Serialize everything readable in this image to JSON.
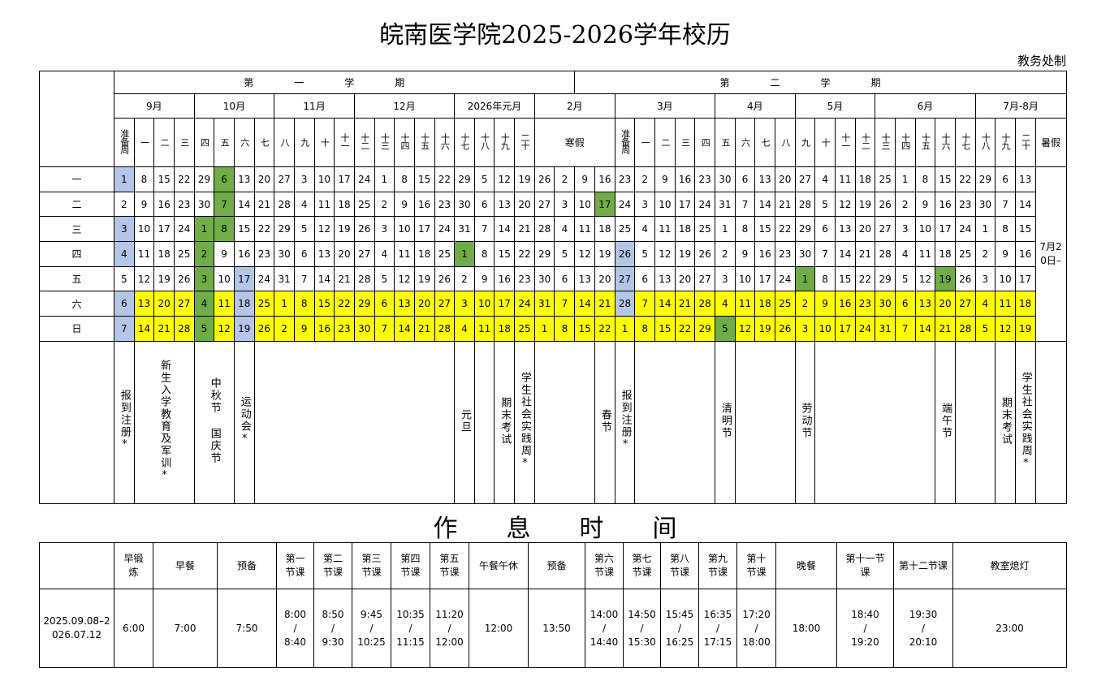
{
  "header": {
    "title": "皖南医学院2025-2026学年校历",
    "issuer": "教务处制"
  },
  "calendar": {
    "semesters": [
      "第一学期",
      "第二学期"
    ],
    "months": [
      "9月",
      "10月",
      "11月",
      "12月",
      "2026年元月",
      "2月",
      "3月",
      "4月",
      "5月",
      "6月",
      "7月-8月"
    ],
    "weeks": [
      "准备周",
      "一",
      "二",
      "三",
      "四",
      "五",
      "六",
      "七",
      "八",
      "九",
      "十",
      "十一",
      "十二",
      "十三",
      "十四",
      "十五",
      "十六",
      "十七",
      "十八",
      "十九",
      "二十",
      "寒假",
      "准备周",
      "一",
      "二",
      "三",
      "四",
      "五",
      "六",
      "七",
      "八",
      "九",
      "十",
      "十一",
      "十二",
      "十三",
      "十四",
      "十五",
      "十六",
      "十七",
      "十八",
      "十九",
      "二十",
      "暑假"
    ],
    "weekdays": [
      "一",
      "二",
      "三",
      "四",
      "五",
      "六",
      "日"
    ],
    "rows": [
      [
        1,
        8,
        15,
        22,
        29,
        6,
        13,
        20,
        27,
        3,
        10,
        17,
        24,
        1,
        8,
        15,
        22,
        29,
        5,
        12,
        19,
        26,
        2,
        9,
        16,
        23,
        2,
        9,
        16,
        23,
        30,
        6,
        13,
        20,
        27,
        4,
        11,
        18,
        25,
        1,
        8,
        15,
        22,
        29,
        6,
        13
      ],
      [
        2,
        9,
        16,
        23,
        30,
        7,
        14,
        21,
        28,
        4,
        11,
        18,
        25,
        2,
        9,
        16,
        23,
        30,
        6,
        13,
        20,
        27,
        3,
        10,
        17,
        24,
        3,
        10,
        17,
        24,
        31,
        7,
        14,
        21,
        28,
        5,
        12,
        19,
        26,
        2,
        9,
        16,
        23,
        30,
        7,
        14
      ],
      [
        3,
        10,
        17,
        24,
        1,
        8,
        15,
        22,
        29,
        5,
        12,
        19,
        26,
        3,
        10,
        17,
        24,
        31,
        7,
        14,
        21,
        28,
        4,
        11,
        18,
        25,
        4,
        11,
        18,
        25,
        1,
        8,
        15,
        22,
        29,
        6,
        13,
        20,
        27,
        3,
        10,
        17,
        24,
        1,
        8,
        15
      ],
      [
        4,
        11,
        18,
        25,
        2,
        9,
        16,
        23,
        30,
        6,
        13,
        20,
        27,
        4,
        11,
        18,
        25,
        1,
        8,
        15,
        22,
        29,
        5,
        12,
        19,
        26,
        5,
        12,
        19,
        26,
        2,
        9,
        16,
        23,
        30,
        7,
        14,
        21,
        28,
        4,
        11,
        18,
        25,
        2,
        9,
        16
      ],
      [
        5,
        12,
        19,
        26,
        3,
        10,
        17,
        24,
        31,
        7,
        14,
        21,
        28,
        5,
        12,
        19,
        26,
        2,
        9,
        16,
        23,
        30,
        6,
        13,
        20,
        27,
        6,
        13,
        20,
        27,
        3,
        10,
        17,
        24,
        1,
        8,
        15,
        22,
        29,
        5,
        12,
        19,
        26,
        3,
        10,
        17
      ],
      [
        6,
        13,
        20,
        27,
        4,
        11,
        18,
        25,
        1,
        8,
        15,
        22,
        29,
        6,
        13,
        20,
        27,
        3,
        10,
        17,
        24,
        31,
        7,
        14,
        21,
        28,
        7,
        14,
        21,
        28,
        4,
        11,
        18,
        25,
        2,
        9,
        16,
        23,
        30,
        6,
        13,
        20,
        27,
        4,
        11,
        18
      ],
      [
        7,
        14,
        21,
        28,
        5,
        12,
        19,
        26,
        2,
        9,
        16,
        23,
        30,
        7,
        14,
        21,
        28,
        4,
        11,
        18,
        25,
        1,
        8,
        15,
        22,
        1,
        8,
        15,
        22,
        29,
        5,
        12,
        19,
        26,
        3,
        10,
        17,
        24,
        31,
        7,
        14,
        21,
        28,
        5,
        12,
        19
      ]
    ],
    "summer_note": "7月20日–",
    "events": [
      "报到注册*",
      "新生入学教育及军训*",
      "中秋节 国庆节",
      "运动会*",
      "元旦",
      "期末考试",
      "学生社会实践周*",
      "春节",
      "报到注册*",
      "清明节",
      "劳动节",
      "端午节",
      "期末考试",
      "学生社会实践周*"
    ],
    "colors": {
      "prep": "#b4c6e7",
      "holiday": "#70ad47",
      "weekend": "#ffff00"
    },
    "prep_cells": [
      [
        0,
        0
      ],
      [
        2,
        0
      ],
      [
        3,
        0
      ],
      [
        5,
        0
      ],
      [
        6,
        0
      ],
      [
        4,
        6
      ],
      [
        5,
        6
      ],
      [
        6,
        6
      ],
      [
        3,
        25
      ],
      [
        4,
        25
      ],
      [
        5,
        25
      ]
    ],
    "holiday_cells": [
      [
        2,
        4
      ],
      [
        3,
        4
      ],
      [
        4,
        4
      ],
      [
        5,
        4
      ],
      [
        6,
        4
      ],
      [
        0,
        5
      ],
      [
        1,
        5
      ],
      [
        2,
        5
      ],
      [
        3,
        17
      ],
      [
        1,
        24
      ],
      [
        4,
        34
      ],
      [
        6,
        30
      ],
      [
        4,
        41
      ]
    ]
  },
  "schedule": {
    "title": "作息时间",
    "headers": [
      "早锻炼",
      "早餐",
      "预备",
      "第一节课",
      "第二节课",
      "第三节课",
      "第四节课",
      "第五节课",
      "午餐午休",
      "预备",
      "第六节课",
      "第七节课",
      "第八节课",
      "第九节课",
      "第十节课",
      "晚餐",
      "第十一节课",
      "第十二节课",
      "教室熄灯"
    ],
    "period": "2025.09.08–2026.07.12",
    "times": [
      "6:00",
      "7:00",
      "7:50",
      [
        "8:00",
        "8:40"
      ],
      [
        "8:50",
        "9:30"
      ],
      [
        "9:45",
        "10:25"
      ],
      [
        "10:35",
        "11:15"
      ],
      [
        "11:20",
        "12:00"
      ],
      "12:00",
      "13:50",
      [
        "14:00",
        "14:40"
      ],
      [
        "14:50",
        "15:30"
      ],
      [
        "15:45",
        "16:25"
      ],
      [
        "16:35",
        "17:15"
      ],
      [
        "17:20",
        "18:00"
      ],
      "18:00",
      [
        "18:40",
        "19:20"
      ],
      [
        "19:30",
        "20:10"
      ],
      "23:00"
    ]
  }
}
